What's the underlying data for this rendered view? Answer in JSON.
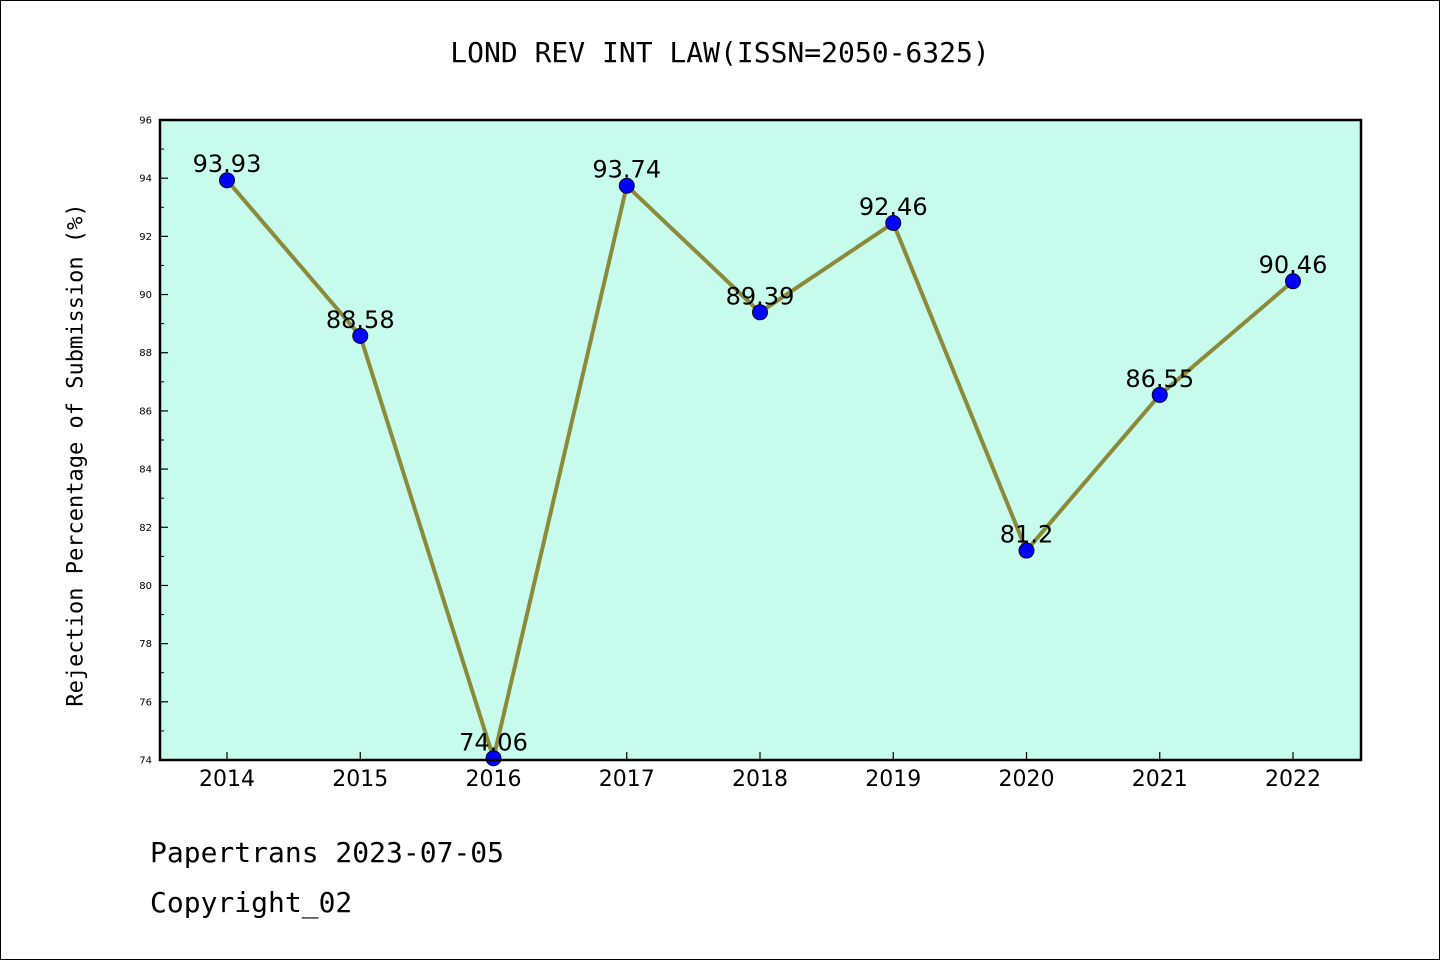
{
  "chart_data": {
    "type": "line",
    "title": "LOND REV INT LAW(ISSN=2050-6325)",
    "xlabel": "",
    "ylabel": "Rejection Percentage of Submission (%)",
    "categories": [
      "2014",
      "2015",
      "2016",
      "2017",
      "2018",
      "2019",
      "2020",
      "2021",
      "2022"
    ],
    "values": [
      93.93,
      88.58,
      74.06,
      93.74,
      89.39,
      92.46,
      81.2,
      86.55,
      90.46
    ],
    "data_labels": [
      "93.93",
      "88.58",
      "74.06",
      "93.74",
      "89.39",
      "92.46",
      "81.2",
      "86.55",
      "90.46"
    ],
    "ylim": [
      74,
      96
    ],
    "yticks": [
      74,
      76,
      78,
      80,
      82,
      84,
      86,
      88,
      90,
      92,
      94,
      96
    ],
    "grid": false,
    "colors": {
      "plot_background": "#c7fcec",
      "line": "#8b8a3a",
      "marker": "#0000ff"
    }
  },
  "footer": {
    "date_line": "Papertrans 2023-07-05",
    "copyright_line": "Copyright_02"
  }
}
